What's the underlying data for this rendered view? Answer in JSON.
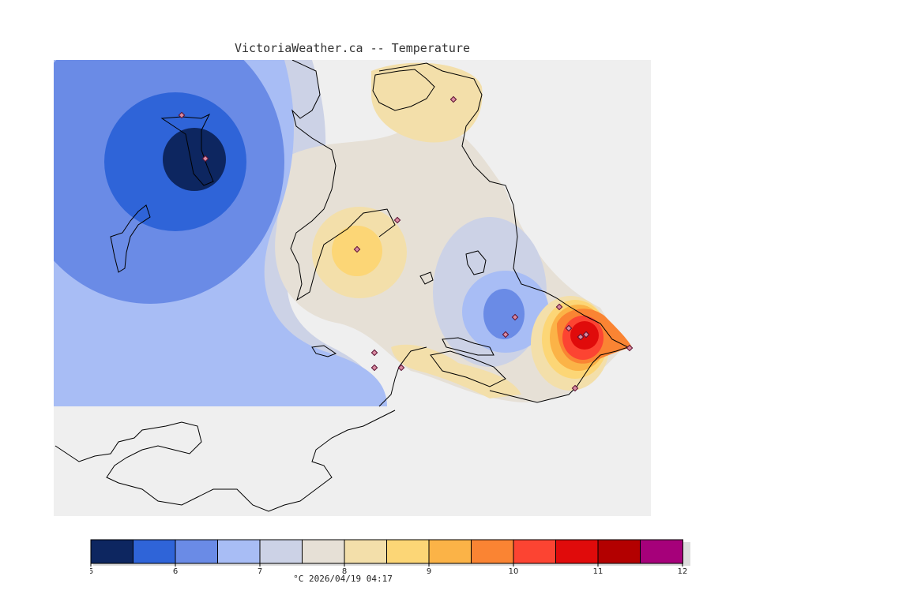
{
  "title": "VictoriaWeather.ca -- Temperature",
  "caption": "°C  2026/04/19 04:17",
  "legend": {
    "ticks": [
      "5",
      "6",
      "7",
      "8",
      "9",
      "10",
      "11",
      "12"
    ],
    "colors": [
      "#0d2660",
      "#2f64d8",
      "#6a8be6",
      "#a8bdf5",
      "#ccd2e6",
      "#e6e0d6",
      "#f3dfaa",
      "#fcd676",
      "#fbb347",
      "#fa8433",
      "#fc4432",
      "#e00b0b",
      "#b30000",
      "#a6007a"
    ]
  },
  "stations": [
    {
      "icon": "diamond-marker",
      "lon": 230,
      "lat": 146
    },
    {
      "icon": "diamond-marker",
      "lon": 260,
      "lat": 201
    },
    {
      "icon": "diamond-marker",
      "lon": 574,
      "lat": 126
    },
    {
      "icon": "diamond-marker",
      "lon": 503,
      "lat": 279
    },
    {
      "icon": "diamond-marker",
      "lon": 452,
      "lat": 316
    },
    {
      "icon": "diamond-marker",
      "lon": 474,
      "lat": 447
    },
    {
      "icon": "diamond-marker",
      "lon": 474,
      "lat": 466
    },
    {
      "icon": "diamond-marker",
      "lon": 508,
      "lat": 466
    },
    {
      "icon": "diamond-marker",
      "lon": 652,
      "lat": 402
    },
    {
      "icon": "diamond-marker",
      "lon": 640,
      "lat": 424
    },
    {
      "icon": "diamond-marker",
      "lon": 708,
      "lat": 389
    },
    {
      "icon": "diamond-marker",
      "lon": 720,
      "lat": 416
    },
    {
      "icon": "diamond-marker",
      "lon": 735,
      "lat": 427
    },
    {
      "icon": "diamond-marker",
      "lon": 742,
      "lat": 424
    },
    {
      "icon": "diamond-marker",
      "lon": 728,
      "lat": 492
    },
    {
      "icon": "diamond-marker",
      "lon": 797,
      "lat": 441
    }
  ]
}
